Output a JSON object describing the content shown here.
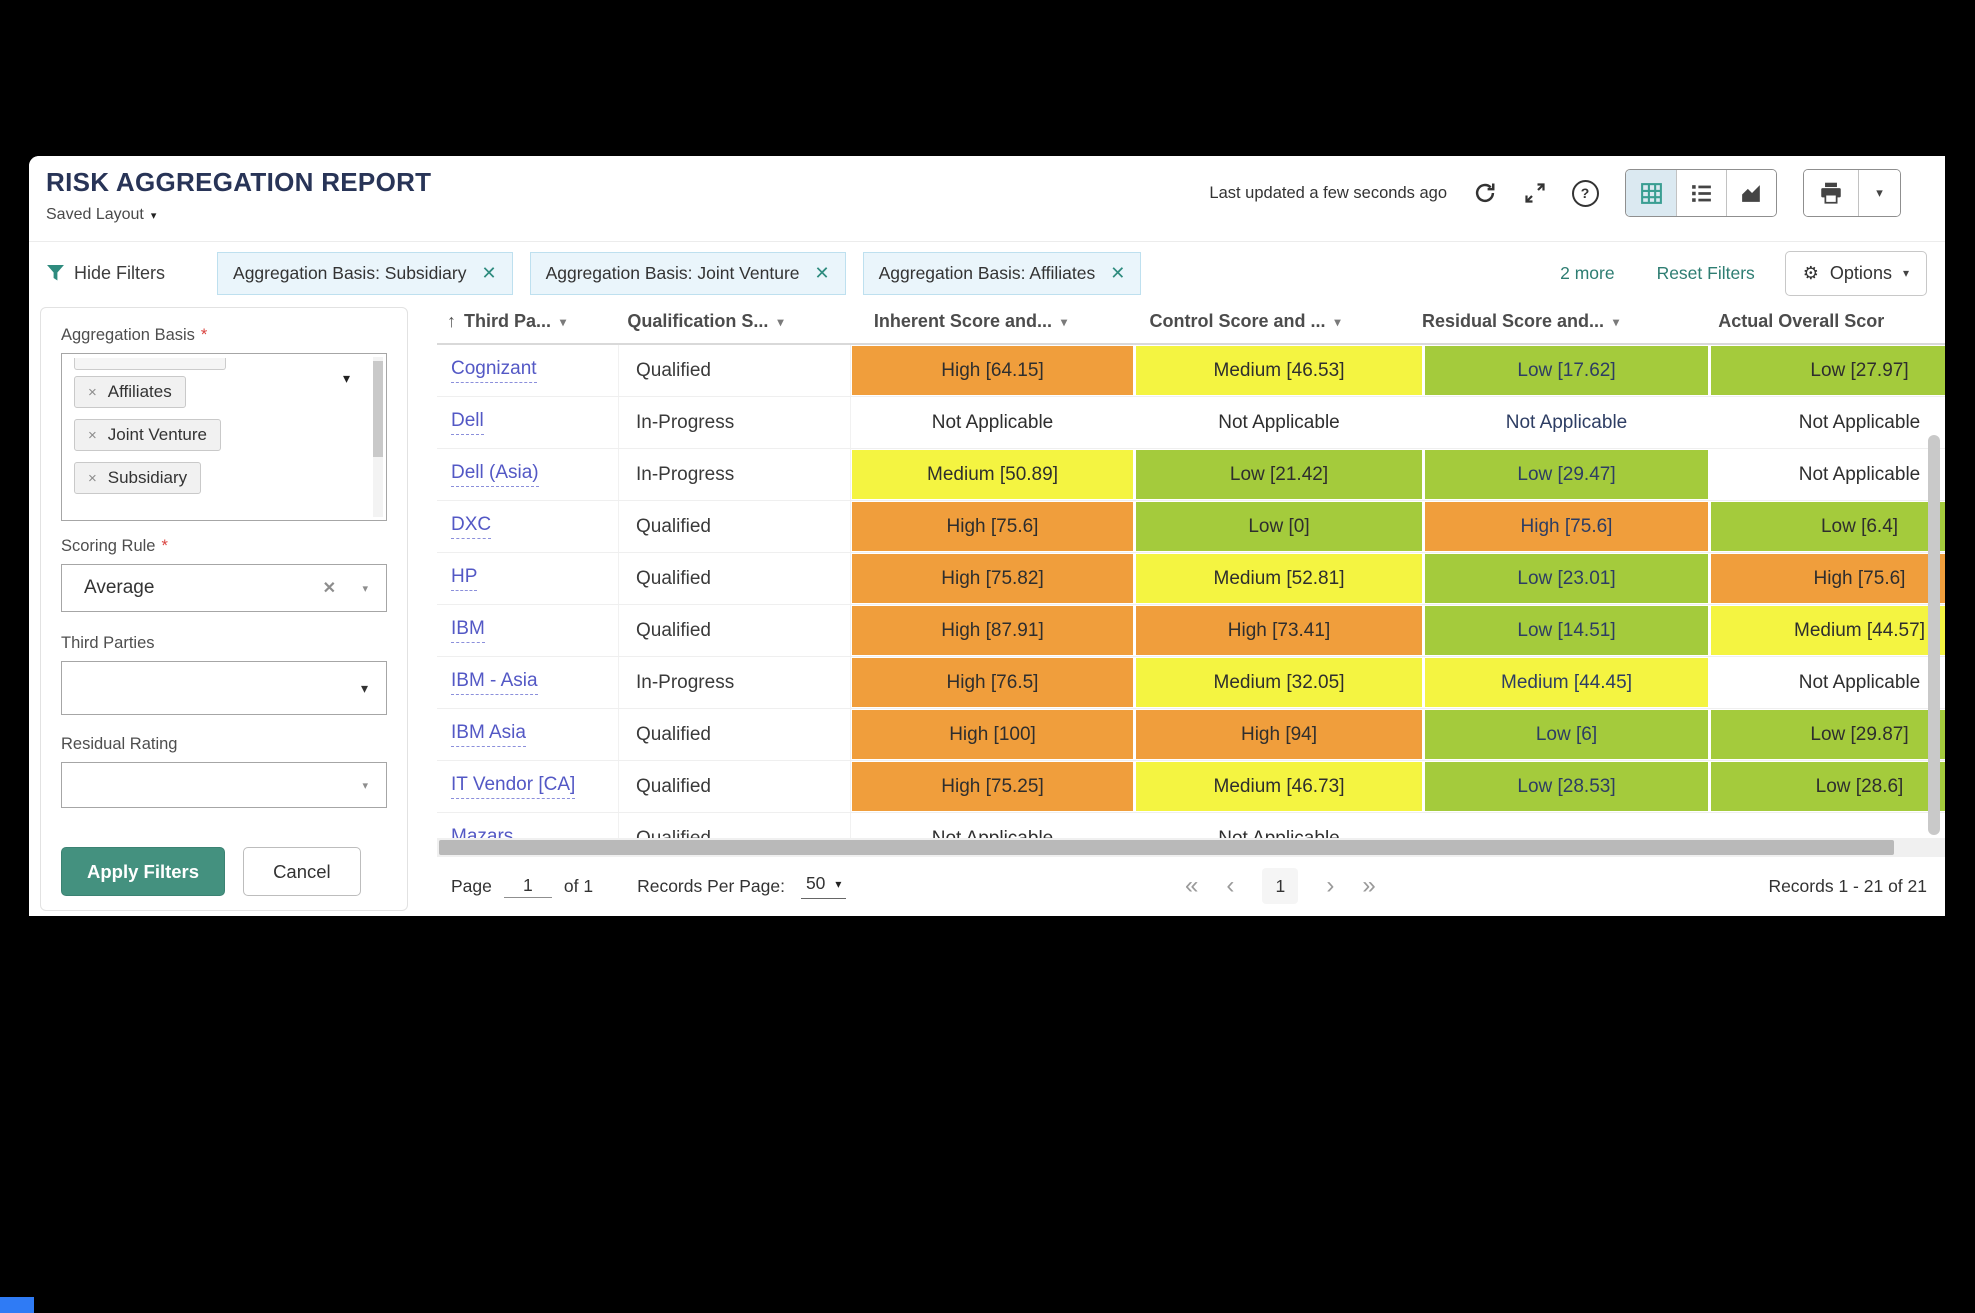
{
  "header": {
    "title": "RISK AGGREGATION REPORT",
    "saved_layout": "Saved Layout",
    "last_updated": "Last updated a few seconds ago"
  },
  "filter_bar": {
    "hide_filters": "Hide Filters",
    "chips": [
      "Aggregation Basis: Subsidiary",
      "Aggregation Basis: Joint Venture",
      "Aggregation Basis: Affiliates"
    ],
    "more": "2 more",
    "reset": "Reset Filters",
    "options": "Options"
  },
  "filter_panel": {
    "aggregation_basis_label": "Aggregation Basis",
    "required_marker": "*",
    "aggregation_tags": [
      "Affiliates",
      "Joint Venture",
      "Subsidiary"
    ],
    "scoring_rule_label": "Scoring Rule",
    "scoring_rule_value": "Average",
    "third_parties_label": "Third Parties",
    "residual_rating_label": "Residual Rating",
    "apply": "Apply Filters",
    "cancel": "Cancel"
  },
  "table": {
    "columns": [
      "Third Pa...",
      "Qualification S...",
      "Inherent Score and...",
      "Control Score and ...",
      "Residual Score and...",
      "Actual Overall Scor"
    ],
    "rows": [
      {
        "third_party": "Cognizant",
        "qualification": "Qualified",
        "inherent": {
          "text": "High [64.15]",
          "level": "high"
        },
        "control": {
          "text": "Medium [46.53]",
          "level": "medium"
        },
        "residual": {
          "text": "Low [17.62]",
          "level": "low"
        },
        "actual": {
          "text": "Low [27.97]",
          "level": "low"
        }
      },
      {
        "third_party": "Dell",
        "qualification": "In-Progress",
        "inherent": {
          "text": "Not Applicable",
          "level": "na"
        },
        "control": {
          "text": "Not Applicable",
          "level": "na"
        },
        "residual": {
          "text": "Not Applicable",
          "level": "na"
        },
        "actual": {
          "text": "Not Applicable",
          "level": "na"
        }
      },
      {
        "third_party": "Dell (Asia)",
        "qualification": "In-Progress",
        "inherent": {
          "text": "Medium [50.89]",
          "level": "medium"
        },
        "control": {
          "text": "Low [21.42]",
          "level": "low"
        },
        "residual": {
          "text": "Low [29.47]",
          "level": "low"
        },
        "actual": {
          "text": "Not Applicable",
          "level": "na"
        }
      },
      {
        "third_party": "DXC",
        "qualification": "Qualified",
        "inherent": {
          "text": "High [75.6]",
          "level": "high"
        },
        "control": {
          "text": "Low [0]",
          "level": "low"
        },
        "residual": {
          "text": "High [75.6]",
          "level": "high"
        },
        "actual": {
          "text": "Low [6.4]",
          "level": "low"
        }
      },
      {
        "third_party": "HP",
        "qualification": "Qualified",
        "inherent": {
          "text": "High [75.82]",
          "level": "high"
        },
        "control": {
          "text": "Medium [52.81]",
          "level": "medium"
        },
        "residual": {
          "text": "Low [23.01]",
          "level": "low"
        },
        "actual": {
          "text": "High [75.6]",
          "level": "high"
        }
      },
      {
        "third_party": "IBM",
        "qualification": "Qualified",
        "inherent": {
          "text": "High [87.91]",
          "level": "high"
        },
        "control": {
          "text": "High [73.41]",
          "level": "high"
        },
        "residual": {
          "text": "Low [14.51]",
          "level": "low"
        },
        "actual": {
          "text": "Medium [44.57]",
          "level": "medium"
        }
      },
      {
        "third_party": "IBM - Asia",
        "qualification": "In-Progress",
        "inherent": {
          "text": "High [76.5]",
          "level": "high"
        },
        "control": {
          "text": "Medium [32.05]",
          "level": "medium"
        },
        "residual": {
          "text": "Medium [44.45]",
          "level": "medium"
        },
        "actual": {
          "text": "Not Applicable",
          "level": "na"
        }
      },
      {
        "third_party": "IBM Asia",
        "qualification": "Qualified",
        "inherent": {
          "text": "High [100]",
          "level": "high"
        },
        "control": {
          "text": "High [94]",
          "level": "high"
        },
        "residual": {
          "text": "Low [6]",
          "level": "low"
        },
        "actual": {
          "text": "Low [29.87]",
          "level": "low"
        }
      },
      {
        "third_party": "IT Vendor [CA]",
        "qualification": "Qualified",
        "inherent": {
          "text": "High [75.25]",
          "level": "high"
        },
        "control": {
          "text": "Medium [46.73]",
          "level": "medium"
        },
        "residual": {
          "text": "Low [28.53]",
          "level": "low"
        },
        "actual": {
          "text": "Low [28.6]",
          "level": "low"
        }
      },
      {
        "third_party": "Mazars",
        "qualification": "Qualified",
        "inherent": {
          "text": "Not Applicable",
          "level": "na"
        },
        "control": {
          "text": "Not Applicable",
          "level": "na"
        },
        "residual": {
          "text": "",
          "level": "na"
        },
        "actual": {
          "text": "",
          "level": "na"
        }
      }
    ]
  },
  "pagination": {
    "page_label": "Page",
    "page_value": "1",
    "of_label": "of 1",
    "rpp_label": "Records Per Page:",
    "rpp_value": "50",
    "current_page": "1",
    "records_label": "Records 1 - 21 of 21"
  },
  "icons": {
    "caret_down": "▾",
    "sort_asc_arrow": "↑",
    "close_x": "✕",
    "tag_remove_x": "×",
    "gear": "⚙",
    "help": "?",
    "first_page": "«",
    "prev_page": "‹",
    "next_page": "›",
    "last_page": "»"
  },
  "colors": {
    "high": "#F09E3C",
    "medium": "#F4F441",
    "low": "#A4CB3C",
    "na": "#FFFFFF",
    "accent_teal": "#44917F",
    "chip_bg": "#EAF5FB",
    "link": "#5358C5",
    "title": "#283457"
  }
}
